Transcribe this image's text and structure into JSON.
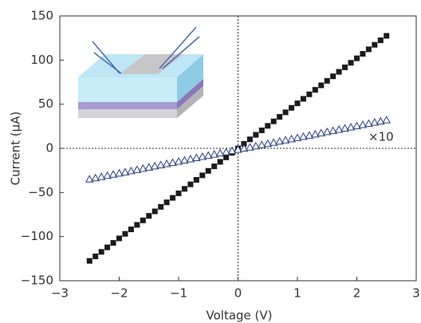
{
  "chart_data": {
    "type": "scatter",
    "xlabel": "Voltage (V)",
    "ylabel": "Current (μA)",
    "annotation": "×10",
    "x": [
      -2.5,
      -2.4,
      -2.3,
      -2.2,
      -2.1,
      -2.0,
      -1.9,
      -1.8,
      -1.7,
      -1.6,
      -1.5,
      -1.4,
      -1.3,
      -1.2,
      -1.1,
      -1.0,
      -0.9,
      -0.8,
      -0.7,
      -0.6,
      -0.5,
      -0.4,
      -0.3,
      -0.2,
      -0.1,
      0,
      0.1,
      0.2,
      0.3,
      0.4,
      0.5,
      0.6,
      0.7,
      0.8,
      0.9,
      1.0,
      1.1,
      1.2,
      1.3,
      1.4,
      1.5,
      1.6,
      1.7,
      1.8,
      1.9,
      2.0,
      2.1,
      2.2,
      2.3,
      2.4,
      2.5
    ],
    "series": [
      {
        "color": "#1a1a1a",
        "marker": "square",
        "values": [
          -127.5,
          -122.4,
          -117.3,
          -112.2,
          -107.1,
          -102,
          -96.9,
          -91.8,
          -86.7,
          -81.6,
          -76.5,
          -71.4,
          -66.3,
          -61.2,
          -56.1,
          -51,
          -45.9,
          -40.8,
          -35.7,
          -30.6,
          -25.5,
          -20.4,
          -15.3,
          -10.2,
          -5.1,
          0,
          5.1,
          10.2,
          15.3,
          20.4,
          25.5,
          30.6,
          35.7,
          40.8,
          45.9,
          51,
          56.1,
          61.2,
          66.3,
          71.4,
          76.5,
          81.6,
          86.7,
          91.8,
          96.9,
          102,
          107.1,
          112.2,
          117.3,
          122.4,
          127.5
        ]
      },
      {
        "color": "#2b3f7e",
        "marker": "triangle",
        "values": [
          -35,
          -33.66,
          -32.32,
          -30.98,
          -29.64,
          -28.3,
          -26.96,
          -25.62,
          -24.28,
          -22.94,
          -21.6,
          -20.26,
          -18.92,
          -17.58,
          -16.24,
          -14.9,
          -13.56,
          -12.22,
          -10.88,
          -9.54,
          -8.2,
          -6.86,
          -5.52,
          -4.18,
          -2.84,
          -1.5,
          -0.16,
          1.18,
          2.52,
          3.86,
          5.2,
          6.54,
          7.88,
          9.22,
          10.56,
          11.9,
          13.24,
          14.58,
          15.92,
          17.26,
          18.6,
          19.94,
          21.28,
          22.62,
          23.96,
          25.3,
          26.64,
          27.98,
          29.32,
          30.66,
          32
        ]
      }
    ],
    "xlim": [
      -3,
      3
    ],
    "xticks": [
      {
        "value": -3,
        "label": "−3"
      },
      {
        "value": -2,
        "label": "−2"
      },
      {
        "value": -1,
        "label": "−1"
      },
      0,
      1,
      2,
      3
    ],
    "ylim": [
      -150,
      150
    ],
    "yticks": [
      {
        "value": -150,
        "label": "−150"
      },
      {
        "value": -100,
        "label": "−100"
      },
      {
        "value": -50,
        "label": "−50"
      },
      0,
      50,
      100,
      150
    ],
    "zero_lines": true
  }
}
